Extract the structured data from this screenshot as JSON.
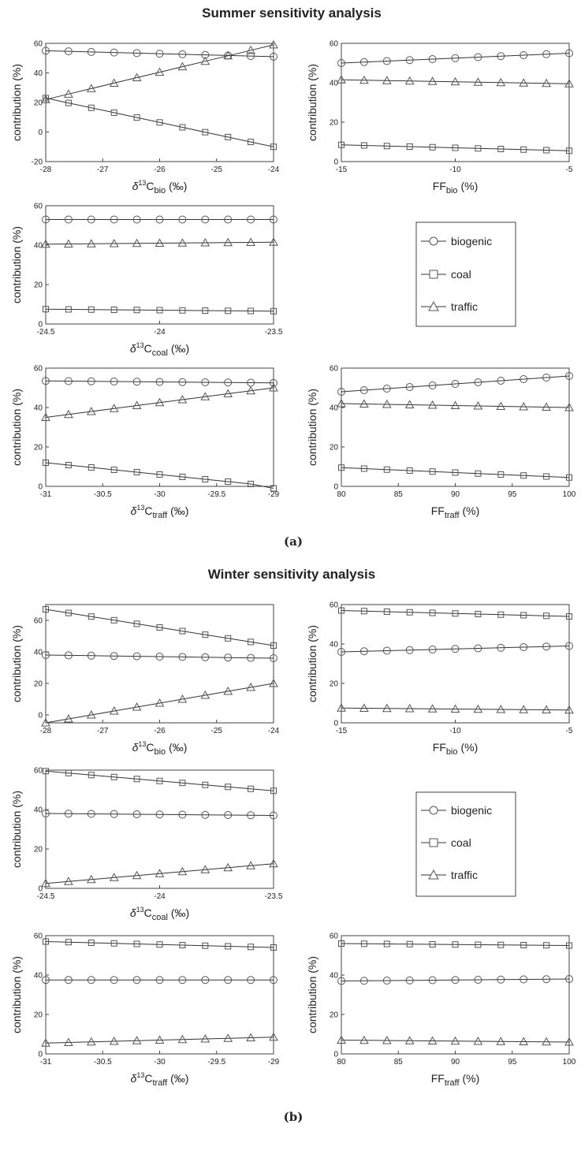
{
  "figure": {
    "summer_title": "Summer sensitivity analysis",
    "winter_title": "Winter sensitivity analysis",
    "label_a": "(a)",
    "label_b": "(b)",
    "legend": {
      "biogenic": "biogenic",
      "coal": "coal",
      "traffic": "traffic"
    },
    "ylabel": "contribution (%)",
    "line_color": "#333333",
    "marker_color": "#555555"
  },
  "chart_data": [
    {
      "type": "line",
      "season": "summer",
      "slot": "top-left",
      "xlabel": {
        "prefix": "δ",
        "sup": "13",
        "main": "C",
        "sub": "bio",
        "suffix": " (‰)"
      },
      "xlim": [
        -28,
        -24
      ],
      "ylim": [
        -20,
        60
      ],
      "xticks": [
        -28,
        -27,
        -26,
        -25,
        -24
      ],
      "yticks": [
        -20,
        0,
        20,
        40,
        60
      ],
      "x": [
        -28,
        -27.6,
        -27.2,
        -26.8,
        -26.4,
        -26,
        -25.6,
        -25.2,
        -24.8,
        -24.4,
        -24
      ],
      "series": [
        {
          "name": "biogenic",
          "marker": "circle",
          "values": [
            55,
            54.6,
            54.2,
            53.8,
            53.4,
            53,
            52.6,
            52.2,
            51.8,
            51.4,
            51
          ]
        },
        {
          "name": "coal",
          "marker": "square",
          "values": [
            23,
            19.7,
            16.4,
            13.1,
            9.8,
            6.5,
            3.2,
            -0.1,
            -3.4,
            -6.7,
            -10
          ]
        },
        {
          "name": "traffic",
          "marker": "triangle",
          "values": [
            22,
            25.7,
            29.4,
            33.1,
            36.8,
            40.5,
            44.2,
            47.9,
            51.6,
            55.3,
            59
          ]
        }
      ]
    },
    {
      "type": "line",
      "season": "summer",
      "slot": "top-right",
      "xlabel": {
        "prefix": "",
        "sup": "",
        "main": "FF",
        "sub": "bio",
        "suffix": " (%)"
      },
      "xlim": [
        -15,
        -5
      ],
      "ylim": [
        0,
        60
      ],
      "xticks": [
        -15,
        -10,
        -5
      ],
      "yticks": [
        0,
        20,
        40,
        60
      ],
      "x": [
        -15,
        -14,
        -13,
        -12,
        -11,
        -10,
        -9,
        -8,
        -7,
        -6,
        -5
      ],
      "series": [
        {
          "name": "biogenic",
          "marker": "circle",
          "values": [
            50,
            50.5,
            51,
            51.5,
            52,
            52.5,
            53,
            53.5,
            54,
            54.5,
            55
          ]
        },
        {
          "name": "coal",
          "marker": "square",
          "values": [
            8.5,
            8.2,
            7.9,
            7.6,
            7.3,
            7,
            6.7,
            6.4,
            6.1,
            5.8,
            5.5
          ]
        },
        {
          "name": "traffic",
          "marker": "triangle",
          "values": [
            41.5,
            41.3,
            41.1,
            40.9,
            40.7,
            40.5,
            40.3,
            40.1,
            39.9,
            39.7,
            39.5
          ]
        }
      ]
    },
    {
      "type": "line",
      "season": "summer",
      "slot": "middle-left",
      "xlabel": {
        "prefix": "δ",
        "sup": "13",
        "main": "C",
        "sub": "coal",
        "suffix": " (‰)"
      },
      "xlim": [
        -24.5,
        -23.5
      ],
      "ylim": [
        0,
        60
      ],
      "xticks": [
        -24.5,
        -24,
        -23.5
      ],
      "yticks": [
        0,
        20,
        40,
        60
      ],
      "x": [
        -24.5,
        -24.4,
        -24.3,
        -24.2,
        -24.1,
        -24,
        -23.9,
        -23.8,
        -23.7,
        -23.6,
        -23.5
      ],
      "series": [
        {
          "name": "biogenic",
          "marker": "circle",
          "values": [
            53,
            53,
            53,
            53,
            53,
            53,
            53,
            53,
            53,
            53,
            53
          ]
        },
        {
          "name": "coal",
          "marker": "square",
          "values": [
            7.5,
            7.4,
            7.3,
            7.2,
            7.1,
            7,
            6.9,
            6.8,
            6.7,
            6.6,
            6.5
          ]
        },
        {
          "name": "traffic",
          "marker": "triangle",
          "values": [
            40.5,
            40.6,
            40.7,
            40.8,
            40.9,
            41,
            41.1,
            41.2,
            41.3,
            41.4,
            41.5
          ]
        }
      ]
    },
    {
      "type": "line",
      "season": "summer",
      "slot": "bottom-left",
      "xlabel": {
        "prefix": "δ",
        "sup": "13",
        "main": "C",
        "sub": "traff",
        "suffix": " (‰)"
      },
      "xlim": [
        -31,
        -29
      ],
      "ylim": [
        0,
        60
      ],
      "xticks": [
        -31,
        -30.5,
        -30,
        -29.5,
        -29
      ],
      "yticks": [
        0,
        20,
        40,
        60
      ],
      "x": [
        -31,
        -30.8,
        -30.6,
        -30.4,
        -30.2,
        -30,
        -29.8,
        -29.6,
        -29.4,
        -29.2,
        -29
      ],
      "series": [
        {
          "name": "biogenic",
          "marker": "circle",
          "values": [
            53.5,
            53.4,
            53.3,
            53.2,
            53.1,
            53,
            52.9,
            52.8,
            52.7,
            52.6,
            52.5
          ]
        },
        {
          "name": "coal",
          "marker": "square",
          "values": [
            12,
            10.8,
            9.6,
            8.4,
            7.2,
            6,
            4.8,
            3.6,
            2.4,
            1.2,
            -1
          ]
        },
        {
          "name": "traffic",
          "marker": "triangle",
          "values": [
            35,
            36.5,
            38,
            39.5,
            41,
            42.5,
            44,
            45.5,
            47,
            48.5,
            50
          ]
        }
      ]
    },
    {
      "type": "line",
      "season": "summer",
      "slot": "bottom-right",
      "xlabel": {
        "prefix": "",
        "sup": "",
        "main": "FF",
        "sub": "traff",
        "suffix": " (%)"
      },
      "xlim": [
        80,
        100
      ],
      "ylim": [
        0,
        60
      ],
      "xticks": [
        80,
        85,
        90,
        95,
        100
      ],
      "yticks": [
        0,
        20,
        40,
        60
      ],
      "x": [
        80,
        82,
        84,
        86,
        88,
        90,
        92,
        94,
        96,
        98,
        100
      ],
      "series": [
        {
          "name": "biogenic",
          "marker": "circle",
          "values": [
            48,
            48.8,
            49.6,
            50.4,
            51.2,
            52,
            52.8,
            53.6,
            54.4,
            55.2,
            56
          ]
        },
        {
          "name": "coal",
          "marker": "square",
          "values": [
            9.5,
            9,
            8.5,
            8,
            7.5,
            7,
            6.5,
            6,
            5.5,
            5,
            4.5
          ]
        },
        {
          "name": "traffic",
          "marker": "triangle",
          "values": [
            42,
            41.8,
            41.6,
            41.4,
            41.2,
            41,
            40.8,
            40.6,
            40.4,
            40.2,
            40
          ]
        }
      ]
    },
    {
      "type": "line",
      "season": "winter",
      "slot": "top-left",
      "xlabel": {
        "prefix": "δ",
        "sup": "13",
        "main": "C",
        "sub": "bio",
        "suffix": " (‰)"
      },
      "xlim": [
        -28,
        -24
      ],
      "ylim": [
        -5,
        70
      ],
      "xticks": [
        -28,
        -27,
        -26,
        -25,
        -24
      ],
      "yticks": [
        0,
        20,
        40,
        60
      ],
      "x": [
        -28,
        -27.6,
        -27.2,
        -26.8,
        -26.4,
        -26,
        -25.6,
        -25.2,
        -24.8,
        -24.4,
        -24
      ],
      "series": [
        {
          "name": "biogenic",
          "marker": "circle",
          "values": [
            38,
            37.8,
            37.6,
            37.4,
            37.2,
            37,
            36.8,
            36.6,
            36.4,
            36.2,
            36
          ]
        },
        {
          "name": "coal",
          "marker": "square",
          "values": [
            67,
            64.7,
            62.4,
            60.1,
            57.8,
            55.5,
            53.2,
            50.9,
            48.6,
            46.3,
            44
          ]
        },
        {
          "name": "traffic",
          "marker": "triangle",
          "values": [
            -5,
            -2.5,
            0,
            2.5,
            5,
            7.5,
            10,
            12.5,
            15,
            17.5,
            20
          ]
        }
      ]
    },
    {
      "type": "line",
      "season": "winter",
      "slot": "top-right",
      "xlabel": {
        "prefix": "",
        "sup": "",
        "main": "FF",
        "sub": "bio",
        "suffix": " (%)"
      },
      "xlim": [
        -15,
        -5
      ],
      "ylim": [
        0,
        60
      ],
      "xticks": [
        -15,
        -10,
        -5
      ],
      "yticks": [
        0,
        20,
        40,
        60
      ],
      "x": [
        -15,
        -14,
        -13,
        -12,
        -11,
        -10,
        -9,
        -8,
        -7,
        -6,
        -5
      ],
      "series": [
        {
          "name": "biogenic",
          "marker": "circle",
          "values": [
            36,
            36.3,
            36.6,
            36.9,
            37.2,
            37.5,
            37.8,
            38.1,
            38.4,
            38.7,
            39
          ]
        },
        {
          "name": "coal",
          "marker": "square",
          "values": [
            57,
            56.7,
            56.4,
            56.1,
            55.8,
            55.5,
            55.2,
            54.9,
            54.6,
            54.3,
            54
          ]
        },
        {
          "name": "traffic",
          "marker": "triangle",
          "values": [
            7.5,
            7.4,
            7.3,
            7.2,
            7.1,
            7,
            6.9,
            6.8,
            6.7,
            6.6,
            6.5
          ]
        }
      ]
    },
    {
      "type": "line",
      "season": "winter",
      "slot": "middle-left",
      "xlabel": {
        "prefix": "δ",
        "sup": "13",
        "main": "C",
        "sub": "coal",
        "suffix": " (‰)"
      },
      "xlim": [
        -24.5,
        -23.5
      ],
      "ylim": [
        0,
        60
      ],
      "xticks": [
        -24.5,
        -24,
        -23.5
      ],
      "yticks": [
        0,
        20,
        40,
        60
      ],
      "x": [
        -24.5,
        -24.4,
        -24.3,
        -24.2,
        -24.1,
        -24,
        -23.9,
        -23.8,
        -23.7,
        -23.6,
        -23.5
      ],
      "series": [
        {
          "name": "biogenic",
          "marker": "circle",
          "values": [
            38,
            37.9,
            37.8,
            37.7,
            37.6,
            37.5,
            37.4,
            37.3,
            37.2,
            37.1,
            37
          ]
        },
        {
          "name": "coal",
          "marker": "square",
          "values": [
            59.5,
            58.5,
            57.5,
            56.5,
            55.5,
            54.5,
            53.5,
            52.5,
            51.5,
            50.5,
            49.5
          ]
        },
        {
          "name": "traffic",
          "marker": "triangle",
          "values": [
            2.5,
            3.5,
            4.5,
            5.5,
            6.5,
            7.5,
            8.5,
            9.5,
            10.5,
            11.5,
            12.5
          ]
        }
      ]
    },
    {
      "type": "line",
      "season": "winter",
      "slot": "bottom-left",
      "xlabel": {
        "prefix": "δ",
        "sup": "13",
        "main": "C",
        "sub": "traff",
        "suffix": " (‰)"
      },
      "xlim": [
        -31,
        -29
      ],
      "ylim": [
        0,
        60
      ],
      "xticks": [
        -31,
        -30.5,
        -30,
        -29.5,
        -29
      ],
      "yticks": [
        0,
        20,
        40,
        60
      ],
      "x": [
        -31,
        -30.8,
        -30.6,
        -30.4,
        -30.2,
        -30,
        -29.8,
        -29.6,
        -29.4,
        -29.2,
        -29
      ],
      "series": [
        {
          "name": "biogenic",
          "marker": "circle",
          "values": [
            37.5,
            37.5,
            37.5,
            37.5,
            37.5,
            37.5,
            37.5,
            37.5,
            37.5,
            37.5,
            37.5
          ]
        },
        {
          "name": "coal",
          "marker": "square",
          "values": [
            57,
            56.7,
            56.4,
            56.1,
            55.8,
            55.5,
            55.2,
            54.9,
            54.6,
            54.3,
            54
          ]
        },
        {
          "name": "traffic",
          "marker": "triangle",
          "values": [
            5.5,
            5.8,
            6.1,
            6.4,
            6.7,
            7,
            7.3,
            7.6,
            7.9,
            8.2,
            8.5
          ]
        }
      ]
    },
    {
      "type": "line",
      "season": "winter",
      "slot": "bottom-right",
      "xlabel": {
        "prefix": "",
        "sup": "",
        "main": "FF",
        "sub": "traff",
        "suffix": " (%)"
      },
      "xlim": [
        80,
        100
      ],
      "ylim": [
        0,
        60
      ],
      "xticks": [
        80,
        85,
        90,
        95,
        100
      ],
      "yticks": [
        0,
        20,
        40,
        60
      ],
      "x": [
        80,
        82,
        84,
        86,
        88,
        90,
        92,
        94,
        96,
        98,
        100
      ],
      "series": [
        {
          "name": "biogenic",
          "marker": "circle",
          "values": [
            37,
            37.1,
            37.2,
            37.3,
            37.4,
            37.5,
            37.6,
            37.7,
            37.8,
            37.9,
            38
          ]
        },
        {
          "name": "coal",
          "marker": "square",
          "values": [
            56,
            55.9,
            55.8,
            55.7,
            55.6,
            55.5,
            55.4,
            55.3,
            55.2,
            55.1,
            55
          ]
        },
        {
          "name": "traffic",
          "marker": "triangle",
          "values": [
            7,
            6.9,
            6.8,
            6.7,
            6.6,
            6.5,
            6.4,
            6.3,
            6.2,
            6.1,
            6
          ]
        }
      ]
    }
  ]
}
